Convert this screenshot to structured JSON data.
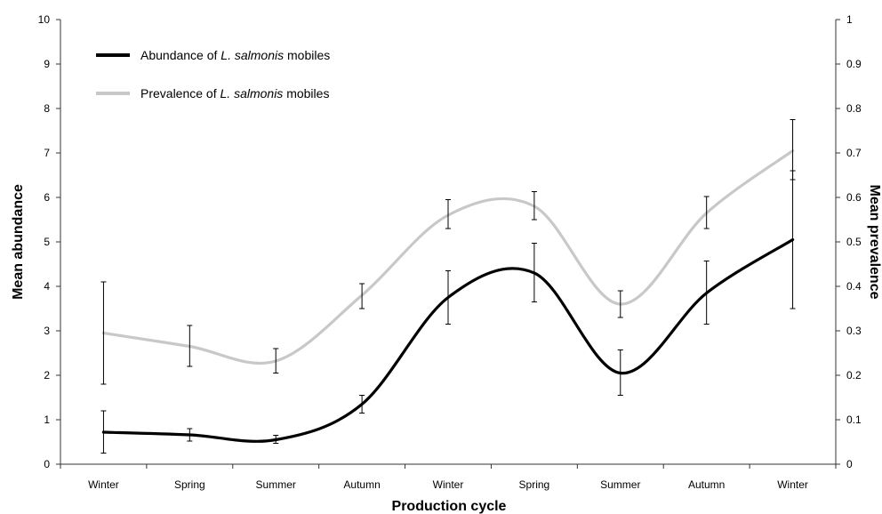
{
  "chart_data": {
    "type": "line",
    "xlabel": "Production cycle",
    "ylabel": "Mean abundance",
    "y2label": "Mean prevalence",
    "categories": [
      "Winter",
      "Spring",
      "Summer",
      "Autumn",
      "Winter",
      "Spring",
      "Summer",
      "Autumn",
      "Winter"
    ],
    "ylim": [
      0,
      10
    ],
    "y2lim": [
      0,
      1
    ],
    "yticks": [
      "0",
      "1",
      "2",
      "3",
      "4",
      "5",
      "6",
      "7",
      "8",
      "9",
      "10"
    ],
    "y2ticks": [
      "0",
      "0.1",
      "0.2",
      "0.3",
      "0.4",
      "0.5",
      "0.6",
      "0.7",
      "0.8",
      "0.9",
      "1"
    ],
    "grid": false,
    "legend_position": "top-left",
    "series": [
      {
        "name_parts": [
          "Abundance of ",
          "L. salmonis",
          " mobiles"
        ],
        "axis": "left",
        "color": "#000000",
        "values": [
          0.72,
          0.66,
          0.55,
          1.35,
          3.75,
          4.3,
          2.05,
          3.85,
          5.05
        ],
        "error_low": [
          0.25,
          0.52,
          0.47,
          1.15,
          3.15,
          3.65,
          1.55,
          3.15,
          3.5
        ],
        "error_high": [
          1.2,
          0.8,
          0.65,
          1.55,
          4.35,
          4.97,
          2.57,
          4.57,
          6.6
        ]
      },
      {
        "name_parts": [
          "Prevalence of ",
          "L. salmonis",
          " mobiles"
        ],
        "axis": "right",
        "color": "#c8c8c8",
        "values": [
          0.295,
          0.265,
          0.232,
          0.38,
          0.56,
          0.58,
          0.36,
          0.565,
          0.705
        ],
        "error_low": [
          0.18,
          0.22,
          0.205,
          0.35,
          0.53,
          0.55,
          0.33,
          0.53,
          0.64
        ],
        "error_high": [
          0.41,
          0.312,
          0.26,
          0.406,
          0.595,
          0.613,
          0.39,
          0.602,
          0.775
        ]
      }
    ]
  }
}
